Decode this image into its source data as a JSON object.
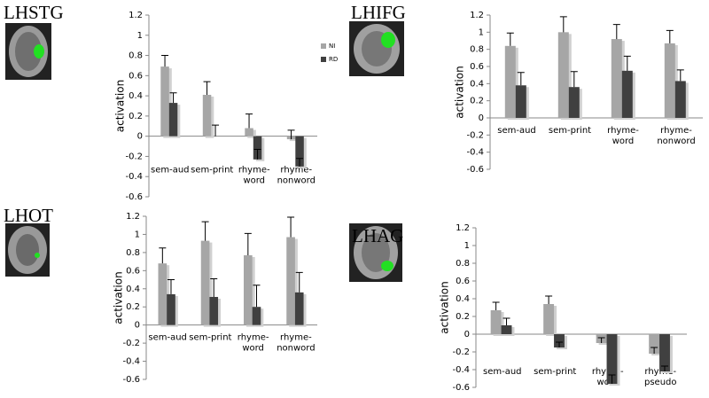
{
  "chart_data": [
    {
      "type": "bar",
      "title": "LHSTG",
      "ylabel": "activation",
      "categories": [
        "sem-aud",
        "sem-print",
        "rhyme-word",
        "rhyme-nonword"
      ],
      "series": [
        {
          "name": "NI",
          "color": "#a6a6a6",
          "values": [
            0.69,
            0.41,
            0.08,
            -0.03
          ],
          "errors": [
            0.11,
            0.13,
            0.14,
            0.09
          ]
        },
        {
          "name": "RD",
          "color": "#404040",
          "values": [
            0.33,
            0,
            -0.23,
            -0.3
          ],
          "errors": [
            0.1,
            0.11,
            0.1,
            0.08
          ]
        }
      ],
      "ylim": [
        -0.6,
        1.2
      ],
      "yticks": [
        -0.6,
        -0.4,
        -0.2,
        0,
        0.2,
        0.4,
        0.6,
        0.8,
        1,
        1.2
      ],
      "legend": "right"
    },
    {
      "type": "bar",
      "title": "LHIFG",
      "ylabel": "activation",
      "categories": [
        "sem-aud",
        "sem-print",
        "rhyme-word",
        "rhyme-nonword"
      ],
      "series": [
        {
          "color": "#a6a6a6",
          "values": [
            0.84,
            1.0,
            0.92,
            0.87
          ],
          "errors": [
            0.15,
            0.18,
            0.17,
            0.15
          ]
        },
        {
          "color": "#404040",
          "values": [
            0.38,
            0.36,
            0.55,
            0.43
          ],
          "errors": [
            0.15,
            0.18,
            0.17,
            0.13
          ]
        }
      ],
      "ylim": [
        -0.6,
        1.2
      ],
      "yticks": [
        -0.6,
        -0.4,
        -0.2,
        0,
        0.2,
        0.4,
        0.6,
        0.8,
        1,
        1.2
      ]
    },
    {
      "type": "bar",
      "title": "LHOT",
      "ylabel": "activation",
      "categories": [
        "sem-aud",
        "sem-print",
        "rhyme-word",
        "rhyme-nonword"
      ],
      "series": [
        {
          "color": "#a6a6a6",
          "values": [
            0.68,
            0.93,
            0.77,
            0.97
          ],
          "errors": [
            0.17,
            0.21,
            0.24,
            0.22
          ]
        },
        {
          "color": "#404040",
          "values": [
            0.34,
            0.31,
            0.2,
            0.36
          ],
          "errors": [
            0.16,
            0.2,
            0.24,
            0.22
          ]
        }
      ],
      "ylim": [
        -0.6,
        1.2
      ],
      "yticks": [
        -0.6,
        -0.4,
        -0.2,
        0,
        0.2,
        0.4,
        0.6,
        0.8,
        1,
        1.2
      ]
    },
    {
      "type": "bar",
      "title": "LHAG",
      "ylabel": "activation",
      "categories": [
        "sem-aud",
        "sem-print",
        "rhyme-word",
        "rhyme-pseudo"
      ],
      "series": [
        {
          "color": "#a6a6a6",
          "values": [
            0.27,
            0.34,
            -0.1,
            -0.22
          ],
          "errors": [
            0.09,
            0.09,
            0.06,
            0.07
          ]
        },
        {
          "color": "#404040",
          "values": [
            0.1,
            -0.15,
            -0.56,
            -0.42
          ],
          "errors": [
            0.08,
            0.06,
            0.1,
            0.06
          ]
        }
      ],
      "ylim": [
        -0.6,
        1.2
      ],
      "yticks": [
        -0.6,
        -0.4,
        -0.2,
        0,
        0.2,
        0.4,
        0.6,
        0.8,
        1,
        1.2
      ]
    }
  ]
}
